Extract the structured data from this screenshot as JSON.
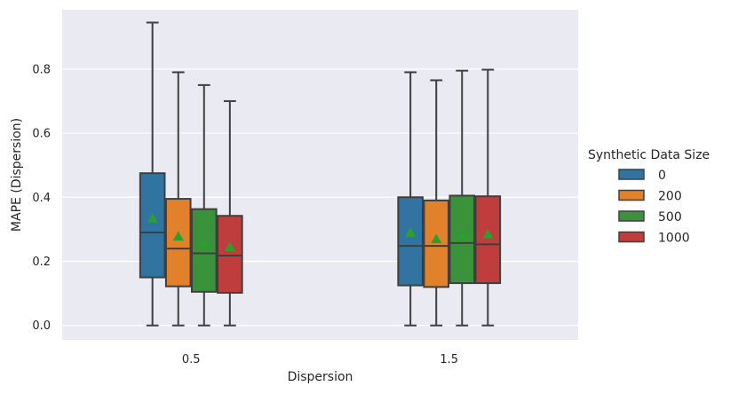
{
  "chart_data": {
    "type": "boxplot",
    "title": "",
    "xlabel": "Dispersion",
    "ylabel": "MAPE (Dispersion)",
    "categories": [
      "0.5",
      "1.5"
    ],
    "ylim": [
      -0.045,
      0.985
    ],
    "yticks": [
      "0.0",
      "0.2",
      "0.4",
      "0.6",
      "0.8"
    ],
    "grid": true,
    "legend": {
      "title": "Synthetic Data Size",
      "placement": "right"
    },
    "series": [
      {
        "name": "0",
        "color": "#3274a1",
        "boxes": [
          {
            "min": 0.0,
            "q1": 0.15,
            "median": 0.29,
            "q3": 0.475,
            "max": 0.945,
            "mean": 0.335
          },
          {
            "min": 0.0,
            "q1": 0.125,
            "median": 0.248,
            "q3": 0.4,
            "max": 0.79,
            "mean": 0.29
          }
        ]
      },
      {
        "name": "200",
        "color": "#e1812c",
        "boxes": [
          {
            "min": 0.0,
            "q1": 0.122,
            "median": 0.24,
            "q3": 0.395,
            "max": 0.79,
            "mean": 0.278
          },
          {
            "min": 0.0,
            "q1": 0.12,
            "median": 0.248,
            "q3": 0.39,
            "max": 0.765,
            "mean": 0.27
          }
        ]
      },
      {
        "name": "500",
        "color": "#3a923a",
        "boxes": [
          {
            "min": 0.0,
            "q1": 0.105,
            "median": 0.225,
            "q3": 0.363,
            "max": 0.75,
            "mean": 0.255
          },
          {
            "min": 0.0,
            "q1": 0.132,
            "median": 0.257,
            "q3": 0.405,
            "max": 0.795,
            "mean": 0.283
          }
        ]
      },
      {
        "name": "1000",
        "color": "#c03d3e",
        "boxes": [
          {
            "min": 0.0,
            "q1": 0.102,
            "median": 0.218,
            "q3": 0.342,
            "max": 0.7,
            "mean": 0.245
          },
          {
            "min": 0.0,
            "q1": 0.132,
            "median": 0.253,
            "q3": 0.403,
            "max": 0.798,
            "mean": 0.285
          }
        ]
      }
    ],
    "mean_marker_color": "#2ca02c",
    "line_color": "#3f3f3f",
    "plot_background": "#eaeaf2"
  }
}
